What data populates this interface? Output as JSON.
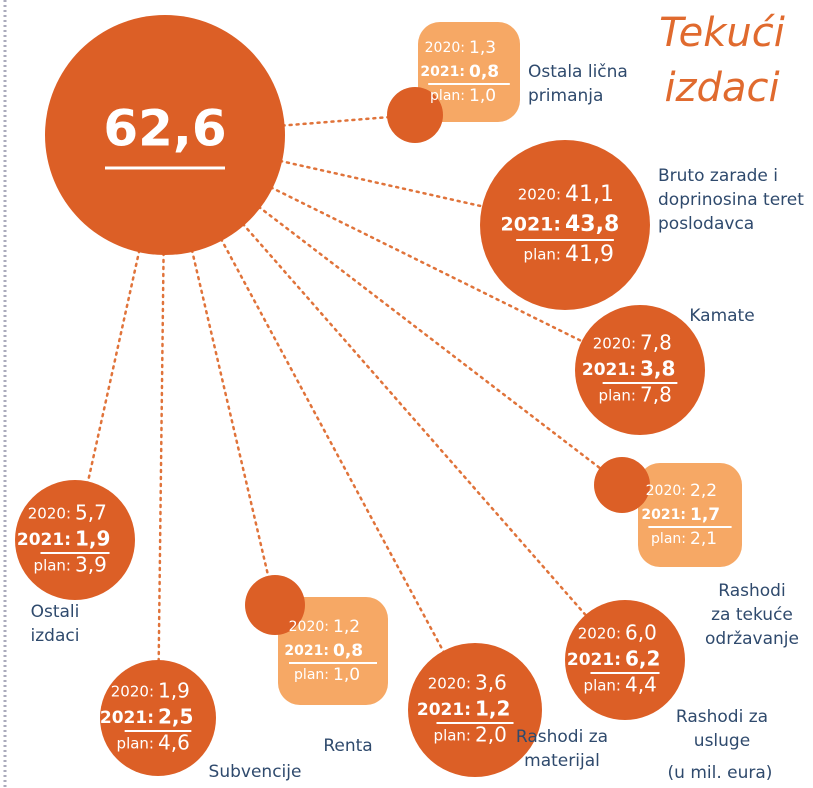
{
  "title": [
    "Tekući",
    "izdaci"
  ],
  "total": "62,6",
  "row_labels": [
    "2020:",
    "2021:",
    "plan:"
  ],
  "unit_note": "(u mil. eura)",
  "items": [
    {
      "label": [
        "Ostala lična",
        "primanja"
      ],
      "values": [
        "1,3",
        "0,8",
        "1,0"
      ]
    },
    {
      "label": [
        "Bruto zarade i",
        "doprinosina teret",
        "poslodavca"
      ],
      "values": [
        "41,1",
        "43,8",
        "41,9"
      ]
    },
    {
      "label": [
        "Kamate"
      ],
      "values": [
        "7,8",
        "3,8",
        "7,8"
      ]
    },
    {
      "label": [
        "Rashodi",
        "za tekuće",
        "održavanje"
      ],
      "values": [
        "2,2",
        "1,7",
        "2,1"
      ]
    },
    {
      "label": [
        "Rashodi za",
        "usluge"
      ],
      "values": [
        "6,0",
        "6,2",
        "4,4"
      ]
    },
    {
      "label": [
        "Rashodi za",
        "materijal"
      ],
      "values": [
        "3,6",
        "1,2",
        "2,0"
      ]
    },
    {
      "label": [
        "Renta"
      ],
      "values": [
        "1,2",
        "0,8",
        "1,0"
      ]
    },
    {
      "label": [
        "Subvencije"
      ],
      "values": [
        "1,9",
        "2,5",
        "4,6"
      ]
    },
    {
      "label": [
        "Ostali",
        "izdaci"
      ],
      "values": [
        "5,7",
        "1,9",
        "3,9"
      ]
    }
  ]
}
